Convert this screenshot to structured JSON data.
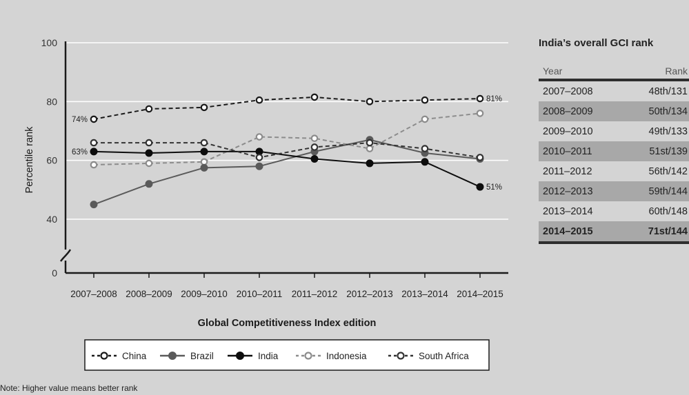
{
  "chart_data": {
    "type": "line",
    "x": [
      "2007–2008",
      "2008–2009",
      "2009–2010",
      "2010–2011",
      "2011–2012",
      "2012–2013",
      "2013–2014",
      "2014–2015"
    ],
    "xlabel": "Global Competitiveness Index edition",
    "ylabel": "Percentile rank",
    "ylim": [
      0,
      100
    ],
    "yticks": [
      0,
      40,
      60,
      80,
      100
    ],
    "axis_break": true,
    "grid": true,
    "legend_position": "bottom",
    "series": [
      {
        "name": "China",
        "style": "dashed",
        "marker": "hollow-circle",
        "color": "#1a1a1a",
        "values": [
          74,
          77.5,
          78,
          80.5,
          81.5,
          80,
          80.5,
          81
        ]
      },
      {
        "name": "Brazil",
        "style": "solid",
        "marker": "filled-circle",
        "color": "#5a5a5a",
        "values": [
          45,
          52,
          57.5,
          58,
          63,
          67,
          62.5,
          60.5
        ]
      },
      {
        "name": "India",
        "style": "solid",
        "marker": "filled-circle",
        "color": "#0d0d0d",
        "values": [
          63,
          62.5,
          63,
          63,
          60.5,
          59,
          59.5,
          51
        ]
      },
      {
        "name": "Indonesia",
        "style": "dashed",
        "marker": "hollow-circle",
        "color": "#8c8c8c",
        "values": [
          58.5,
          59,
          59.5,
          68,
          67.5,
          64,
          74,
          76
        ]
      },
      {
        "name": "South Africa",
        "style": "dashed",
        "marker": "hollow-circle",
        "color": "#333333",
        "values": [
          66,
          66,
          66,
          61,
          64.5,
          66,
          64,
          61
        ]
      }
    ],
    "annotations": [
      {
        "series": "China",
        "index": 0,
        "text": "74%",
        "side": "left"
      },
      {
        "series": "China",
        "index": 7,
        "text": "81%",
        "side": "right"
      },
      {
        "series": "India",
        "index": 0,
        "text": "63%",
        "side": "left"
      },
      {
        "series": "India",
        "index": 7,
        "text": "51%",
        "side": "right"
      }
    ]
  },
  "rank_table": {
    "title": "India’s overall GCI rank",
    "headers": {
      "year": "Year",
      "rank": "Rank"
    },
    "rows": [
      {
        "year": "2007–2008",
        "rank": "48th/131"
      },
      {
        "year": "2008–2009",
        "rank": "50th/134"
      },
      {
        "year": "2009–2010",
        "rank": "49th/133"
      },
      {
        "year": "2010–2011",
        "rank": "51st/139"
      },
      {
        "year": "2011–2012",
        "rank": "56th/142"
      },
      {
        "year": "2012–2013",
        "rank": "59th/144"
      },
      {
        "year": "2013–2014",
        "rank": "60th/148"
      },
      {
        "year": "2014–2015",
        "rank": "71st/144"
      }
    ]
  },
  "note": "Note: Higher value means better rank"
}
